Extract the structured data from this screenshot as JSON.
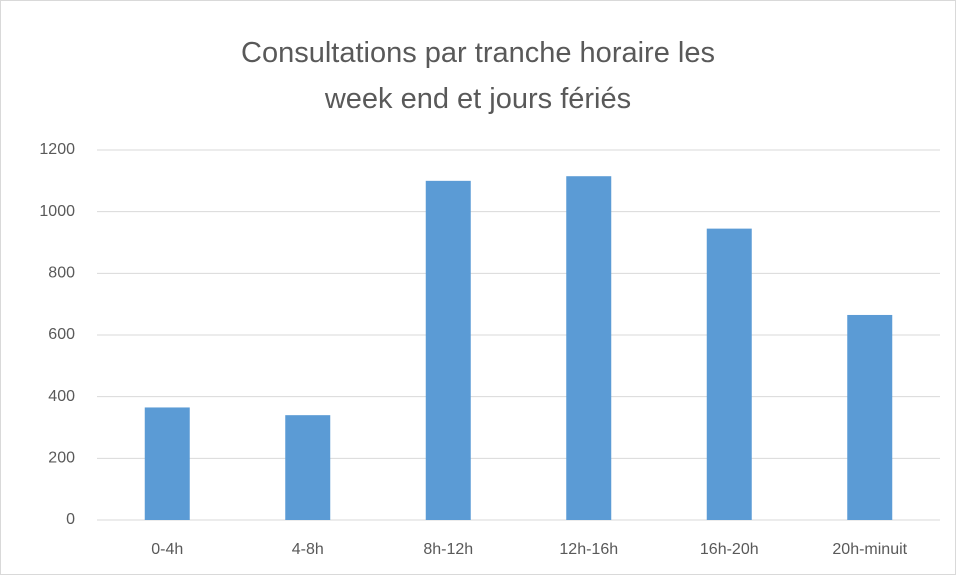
{
  "chart_data": {
    "type": "bar",
    "title": "Consultations par tranche horaire les week end et jours fériés",
    "categories": [
      "0-4h",
      "4-8h",
      "8h-12h",
      "12h-16h",
      "16h-20h",
      "20h-minuit"
    ],
    "values": [
      365,
      340,
      1100,
      1115,
      945,
      665
    ],
    "color": "#5b9bd5",
    "ylim": [
      0,
      1200
    ],
    "yticks": [
      0,
      200,
      400,
      600,
      800,
      1000,
      1200
    ],
    "grid": true
  }
}
